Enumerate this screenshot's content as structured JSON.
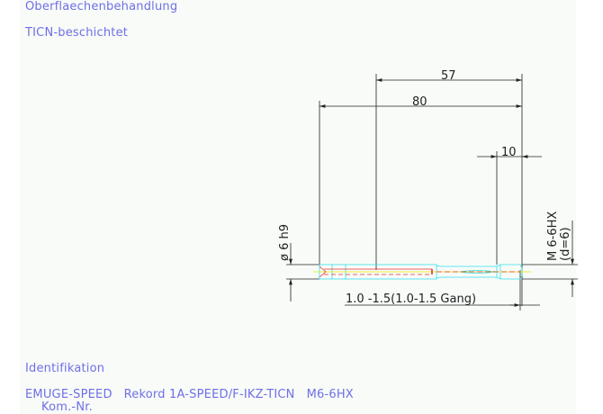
{
  "header": {
    "surface_label": "Oberflaechenbehandlung",
    "surface_value": "TICN-beschichtet"
  },
  "drawing": {
    "dim_57": "57",
    "dim_80": "80",
    "dim_10": "10",
    "diameter": "ø 6 h9",
    "thread": "M 6-6HX",
    "thread_d": "(d=6)",
    "chamfer": "1.0 -1.5(1.0-1.5 Gang)",
    "colors": {
      "outline": "#33e0f0",
      "center": "#e8e800",
      "hidden": "#e83030",
      "dims": "#222222"
    }
  },
  "footer": {
    "ident_label": "Identifikation",
    "ident_value": "EMUGE-SPEED   Rekord 1A-SPEED/F-IKZ-TICN   M6-6HX",
    "kom_label": "Kom.-Nr."
  }
}
